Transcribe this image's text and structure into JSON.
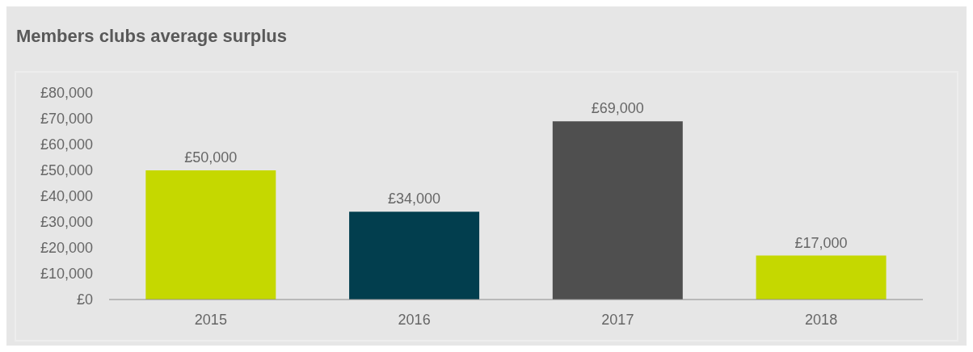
{
  "chart_data": {
    "type": "bar",
    "title": "Members clubs average surplus",
    "categories": [
      "2015",
      "2016",
      "2017",
      "2018"
    ],
    "values": [
      50000,
      34000,
      69000,
      17000
    ],
    "colors": [
      "#c5d800",
      "#023e4e",
      "#4f4f4f",
      "#c5d800"
    ],
    "value_labels": [
      "£50,000",
      "£34,000",
      "£69,000",
      "£17,000"
    ],
    "ylim": [
      0,
      80000
    ],
    "yticks": [
      {
        "value": 0,
        "label": "£0"
      },
      {
        "value": 10000,
        "label": "£10,000"
      },
      {
        "value": 20000,
        "label": "£20,000"
      },
      {
        "value": 30000,
        "label": "£30,000"
      },
      {
        "value": 40000,
        "label": "£40,000"
      },
      {
        "value": 50000,
        "label": "£50,000"
      },
      {
        "value": 60000,
        "label": "£60,000"
      },
      {
        "value": 70000,
        "label": "£70,000"
      },
      {
        "value": 80000,
        "label": "£80,000"
      }
    ],
    "grid": false
  }
}
